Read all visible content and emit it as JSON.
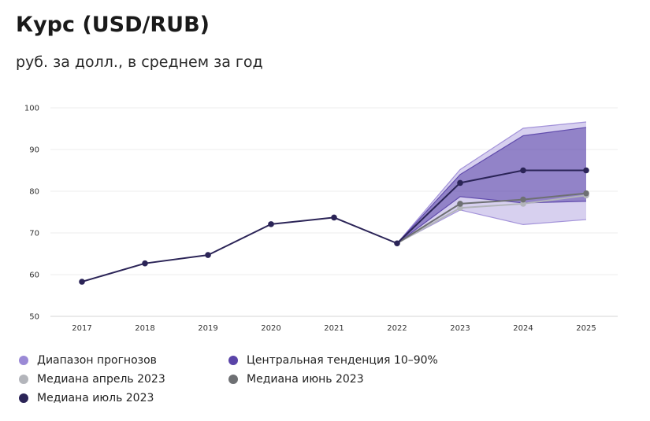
{
  "header": {
    "title": "Курс (USD/RUB)",
    "subtitle": "руб. за долл., в среднем за год"
  },
  "chart_data": {
    "type": "line",
    "x": [
      "2017",
      "2018",
      "2019",
      "2020",
      "2021",
      "2022",
      "2023",
      "2024",
      "2025"
    ],
    "ylim": [
      50,
      100
    ],
    "yticks": [
      50,
      60,
      70,
      80,
      90,
      100
    ],
    "grid": true,
    "legend_position": "bottom",
    "bands": [
      {
        "name": "Диапазон прогнозов",
        "color": "#9b8ad6",
        "x": [
          "2022",
          "2023",
          "2024",
          "2025"
        ],
        "low": [
          67.5,
          75.5,
          72.0,
          73.2
        ],
        "high": [
          67.5,
          85.2,
          95.1,
          96.6
        ]
      },
      {
        "name": "Центральная тенденция 10–90%",
        "color": "#5a44a8",
        "x": [
          "2022",
          "2023",
          "2024",
          "2025"
        ],
        "low": [
          67.5,
          78.7,
          77.2,
          77.6
        ],
        "high": [
          67.5,
          84.0,
          93.3,
          95.3
        ]
      }
    ],
    "series": [
      {
        "name": "Медиана апрель 2023",
        "color": "#b3b5bb",
        "x": [
          "2022",
          "2023",
          "2024",
          "2025"
        ],
        "values": [
          67.5,
          76.0,
          77.0,
          79.0
        ]
      },
      {
        "name": "Медиана июнь 2023",
        "color": "#6e7073",
        "x": [
          "2022",
          "2023",
          "2024",
          "2025"
        ],
        "values": [
          67.5,
          77.0,
          78.0,
          79.5
        ]
      },
      {
        "name": "Медиана июль 2023",
        "color": "#2b2457",
        "x": [
          "2017",
          "2018",
          "2019",
          "2020",
          "2021",
          "2022",
          "2023",
          "2024",
          "2025"
        ],
        "values": [
          58.3,
          62.7,
          64.7,
          72.1,
          73.7,
          67.5,
          82.0,
          85.0,
          85.0
        ]
      }
    ]
  },
  "legend": {
    "items": [
      {
        "label": "Диапазон прогнозов",
        "color": "#9b8ad6"
      },
      {
        "label": "Центральная тенденция 10–90%",
        "color": "#5a44a8"
      },
      {
        "label": "Медиана апрель 2023",
        "color": "#b3b5bb"
      },
      {
        "label": "Медиана июнь 2023",
        "color": "#6e7073"
      },
      {
        "label": "Медиана июль 2023",
        "color": "#2b2457"
      }
    ]
  }
}
